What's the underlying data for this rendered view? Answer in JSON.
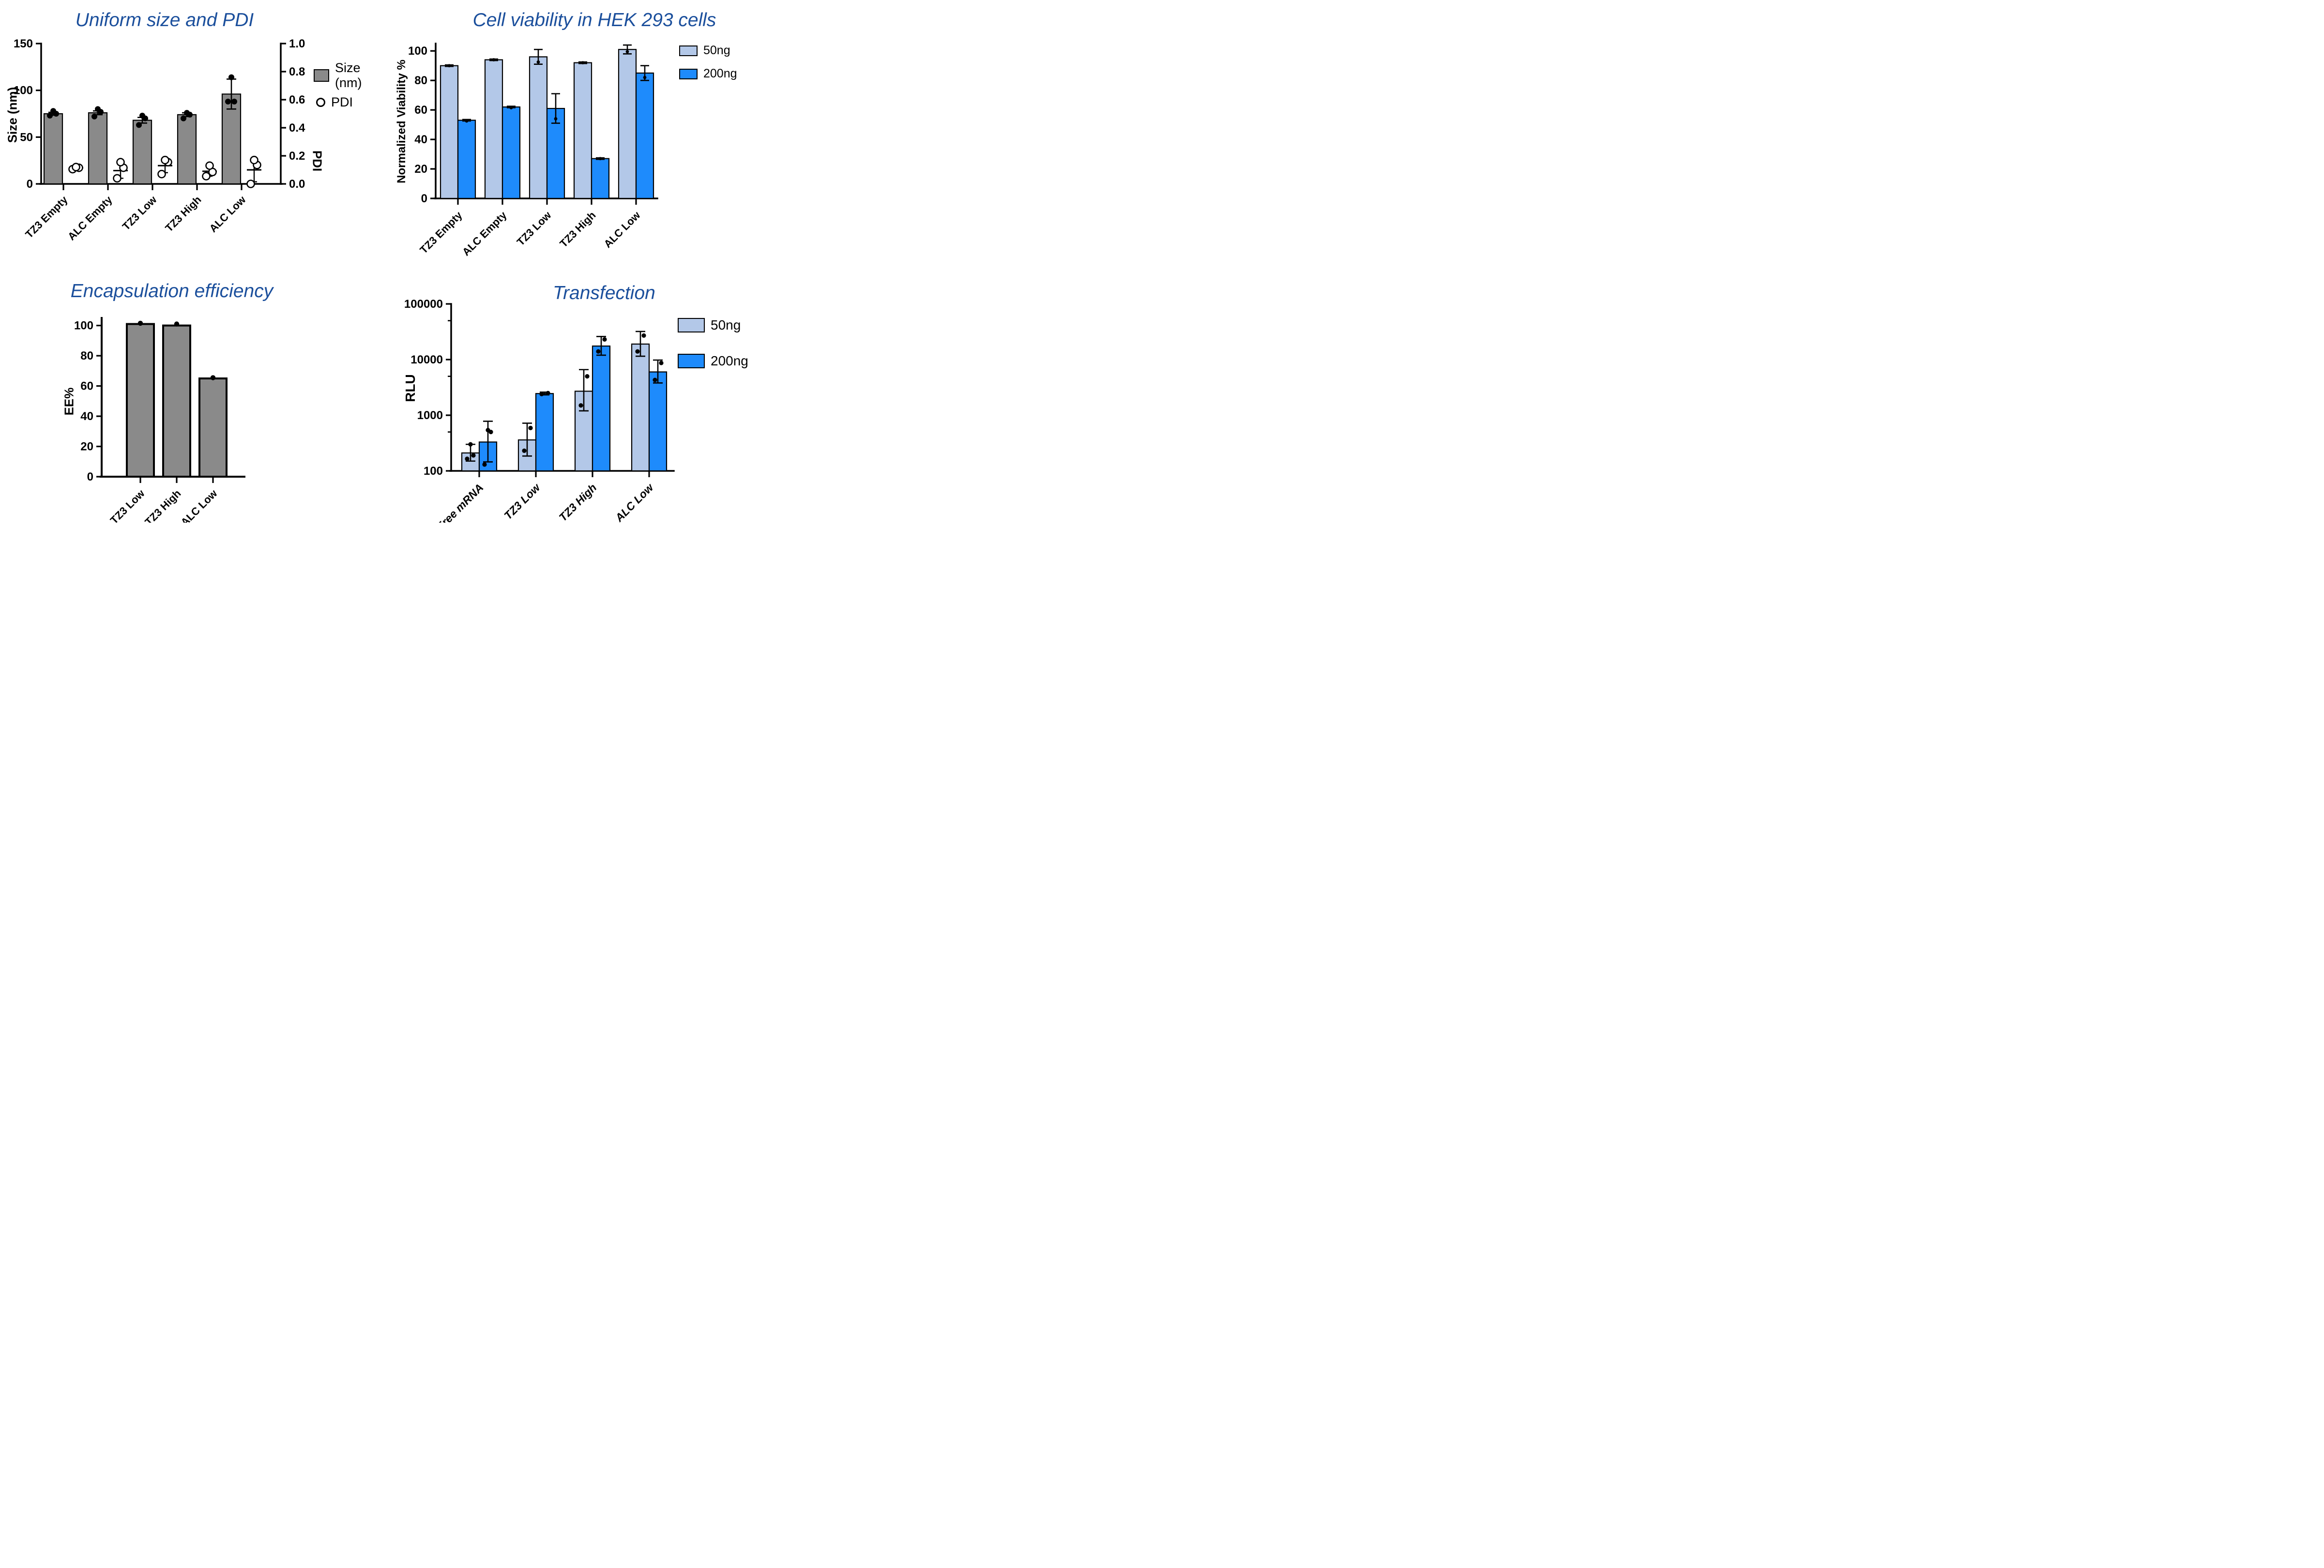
{
  "colors": {
    "title": "#1B4F9C",
    "gray": "#8A8A8A",
    "light_blue": "#B3C8E8",
    "blue": "#1E8BFC",
    "black": "#000000",
    "background": "#FFFFFF"
  },
  "chart_data": [
    {
      "id": "size_pdi",
      "type": "bar",
      "title": "Uniform size and PDI",
      "left_axis": {
        "label": "Size (nm)",
        "min": 0,
        "max": 150,
        "ticks": [
          0,
          50,
          100,
          150
        ]
      },
      "right_axis": {
        "label": "PDI",
        "min": 0,
        "max": 1,
        "ticks": [
          0,
          0.2,
          0.4,
          0.6,
          0.8,
          1
        ],
        "decimals": 1
      },
      "categories": [
        "TZ3 Empty",
        "ALC Empty",
        "TZ3 Low",
        "TZ3 High",
        "ALC Low"
      ],
      "size_series": {
        "name": "Size (nm)",
        "values": [
          75,
          76,
          68,
          74,
          96
        ],
        "err": [
          1.5,
          2,
          3,
          2,
          16
        ],
        "points": [
          [
            73,
            75,
            78
          ],
          [
            72,
            77,
            80
          ],
          [
            63,
            70,
            73
          ],
          [
            70,
            74,
            76
          ],
          [
            88,
            88,
            114
          ]
        ]
      },
      "pdi_series": {
        "name": "PDI",
        "means": [
          0.115,
          0.095,
          0.13,
          0.09,
          0.1
        ],
        "err": [
          0.012,
          0.055,
          0.05,
          0.035,
          0.085
        ],
        "points": [
          [
            0.105,
            0.115,
            0.12
          ],
          [
            0.04,
            0.115,
            0.155
          ],
          [
            0.07,
            0.155,
            0.17
          ],
          [
            0.055,
            0.085,
            0.13
          ],
          [
            0,
            0.135,
            0.17
          ]
        ]
      },
      "legend": [
        {
          "label": "Size (nm)",
          "swatch": "bar",
          "color_key": "gray"
        },
        {
          "label": "PDI",
          "swatch": "circle"
        }
      ]
    },
    {
      "id": "viability",
      "type": "bar",
      "title": "Cell viability in HEK 293 cells",
      "y_axis": {
        "label": "Normalized Viability %",
        "min": 0,
        "max": 105,
        "ticks": [
          0,
          20,
          40,
          60,
          80,
          100
        ]
      },
      "categories": [
        "TZ3 Empty",
        "ALC Empty",
        "TZ3 Low",
        "TZ3 High",
        "ALC Low"
      ],
      "series": [
        {
          "name": "50ng",
          "color_key": "light_blue",
          "values": [
            90,
            94,
            96,
            92,
            101
          ],
          "err": [
            0.5,
            0.5,
            5,
            0.5,
            3
          ],
          "points": [
            [
              90
            ],
            [
              94
            ],
            [
              92.5
            ],
            [
              92
            ],
            [
              99.5
            ]
          ]
        },
        {
          "name": "200ng",
          "color_key": "blue",
          "values": [
            53,
            62,
            61,
            27,
            85
          ],
          "err": [
            0.5,
            0.5,
            10,
            0.5,
            5
          ],
          "points": [
            [
              52.5
            ],
            [
              61.5
            ],
            [
              54
            ],
            [
              27
            ],
            [
              82
            ]
          ]
        }
      ],
      "legend": [
        {
          "label": "50ng",
          "swatch": "bar",
          "color_key": "light_blue"
        },
        {
          "label": "200ng",
          "swatch": "bar",
          "color_key": "blue"
        }
      ]
    },
    {
      "id": "ee",
      "type": "bar",
      "title": "Encapsulation efficiency",
      "y_axis": {
        "label": "EE%",
        "min": 0,
        "max": 105,
        "ticks": [
          0,
          20,
          40,
          60,
          80,
          100
        ]
      },
      "categories": [
        "TZ3 Low",
        "TZ3 High",
        "ALC Low"
      ],
      "series": [
        {
          "name": "EE%",
          "color_key": "gray",
          "values": [
            101,
            100,
            65
          ],
          "err": [
            0,
            0,
            0
          ],
          "points": [
            [
              101.5
            ],
            [
              101
            ],
            [
              65.5
            ]
          ]
        }
      ],
      "legend": []
    },
    {
      "id": "transfection",
      "type": "bar",
      "title": "Transfection",
      "y_axis": {
        "label": "RLU",
        "min": 100,
        "max": 100000,
        "ticks": [
          100,
          1000,
          10000,
          100000
        ],
        "minor_ticks": [
          500,
          5000,
          50000
        ],
        "log": true
      },
      "categories": [
        "Free mRNA",
        "TZ3 Low",
        "TZ3 High",
        "ALC Low"
      ],
      "italic_categories": true,
      "series": [
        {
          "name": "50ng",
          "color_key": "light_blue",
          "values": [
            210,
            360,
            2700,
            19000
          ],
          "err_top": [
            300,
            720,
            6600,
            32000
          ],
          "err_bot": [
            150,
            185,
            1200,
            11500
          ],
          "points": [
            [
              165,
              190,
              300
            ],
            [
              230,
              590
            ],
            [
              1500,
              5000
            ],
            [
              14000,
              27000
            ]
          ]
        },
        {
          "name": "200ng",
          "color_key": "blue",
          "values": [
            330,
            2450,
            17500,
            6000
          ],
          "err_top": [
            780,
            2600,
            26000,
            9800
          ],
          "err_bot": [
            145,
            2320,
            12000,
            3800
          ],
          "points": [
            [
              130,
              500,
              540
            ],
            [
              2400,
              2500
            ],
            [
              14000,
              23000
            ],
            [
              4300,
              8700
            ]
          ]
        }
      ],
      "legend": [
        {
          "label": "50ng",
          "swatch": "bar",
          "color_key": "light_blue"
        },
        {
          "label": "200ng",
          "swatch": "bar",
          "color_key": "blue"
        }
      ]
    }
  ]
}
